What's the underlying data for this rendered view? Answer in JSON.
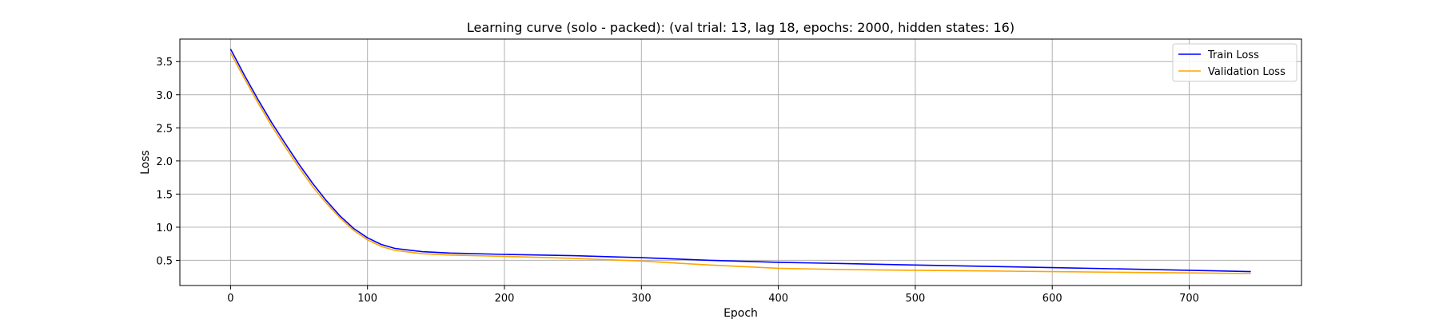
{
  "chart_data": {
    "type": "line",
    "title": "Learning curve (solo - packed): (val trial: 13, lag 18, epochs: 2000, hidden states: 16)",
    "xlabel": "Epoch",
    "ylabel": "Loss",
    "xlim": [
      -37,
      782
    ],
    "ylim": [
      0.12,
      3.84
    ],
    "xticks": [
      0,
      100,
      200,
      300,
      400,
      500,
      600,
      700
    ],
    "yticks": [
      0.5,
      1.0,
      1.5,
      2.0,
      2.5,
      3.0,
      3.5
    ],
    "grid": true,
    "legend_position": "top-right",
    "series": [
      {
        "name": "Train Loss",
        "color": "#0000ff",
        "x": [
          0,
          10,
          20,
          30,
          40,
          50,
          60,
          70,
          80,
          90,
          100,
          110,
          120,
          140,
          160,
          200,
          250,
          300,
          350,
          400,
          450,
          500,
          550,
          600,
          650,
          700,
          745
        ],
        "values": [
          3.69,
          3.3,
          2.93,
          2.58,
          2.26,
          1.95,
          1.66,
          1.4,
          1.17,
          0.98,
          0.84,
          0.74,
          0.68,
          0.63,
          0.61,
          0.59,
          0.57,
          0.54,
          0.5,
          0.47,
          0.45,
          0.43,
          0.41,
          0.39,
          0.37,
          0.35,
          0.33
        ]
      },
      {
        "name": "Validation Loss",
        "color": "#ffa500",
        "x": [
          0,
          10,
          20,
          30,
          40,
          50,
          60,
          70,
          80,
          90,
          100,
          110,
          120,
          140,
          160,
          200,
          250,
          300,
          350,
          400,
          450,
          500,
          550,
          600,
          650,
          700,
          745
        ],
        "values": [
          3.63,
          3.25,
          2.88,
          2.53,
          2.21,
          1.9,
          1.61,
          1.36,
          1.14,
          0.95,
          0.81,
          0.71,
          0.65,
          0.6,
          0.58,
          0.56,
          0.53,
          0.49,
          0.43,
          0.38,
          0.36,
          0.35,
          0.34,
          0.33,
          0.32,
          0.31,
          0.3
        ]
      }
    ]
  }
}
